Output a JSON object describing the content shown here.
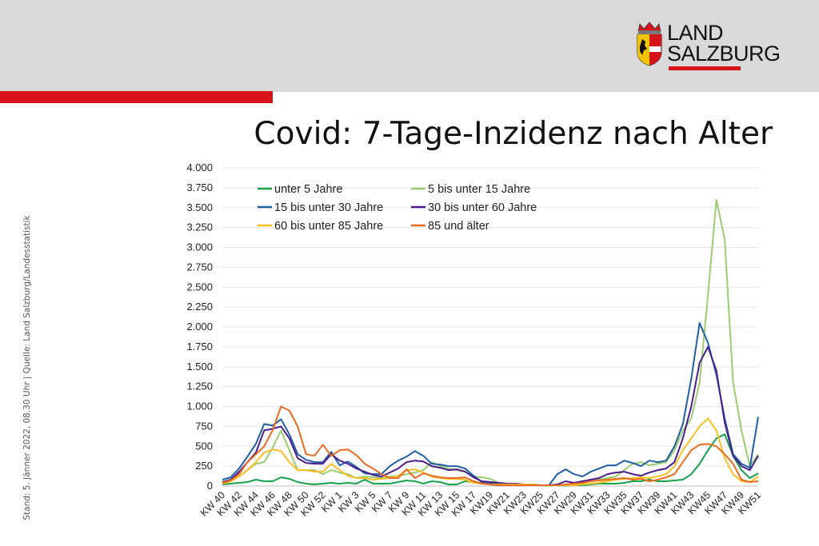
{
  "header": {
    "logo_line1": "LAND",
    "logo_line2": "SALZBURG",
    "brand_color": "#d7141a"
  },
  "slide": {
    "title": "Covid: 7-Tage-Inzidenz nach Alter",
    "sidenote": "Stand: 5. Jänner 2022, 08.30 Uhr | Quelle: Land Salzburg/Landesstatistik"
  },
  "chart_data": {
    "type": "line",
    "title": "",
    "xlabel": "",
    "ylabel": "",
    "ylim": [
      0,
      4000
    ],
    "yticks": [
      0,
      250,
      500,
      750,
      1000,
      1250,
      1500,
      1750,
      2000,
      2250,
      2500,
      2750,
      3000,
      3250,
      3500,
      3750,
      4000
    ],
    "ytick_labels": [
      "0",
      "250",
      "500",
      "750",
      "1.000",
      "1.250",
      "1.500",
      "1.750",
      "2.000",
      "2.250",
      "2.500",
      "2.750",
      "3.000",
      "3.250",
      "3.500",
      "3.750",
      "4.000"
    ],
    "grid": true,
    "legend": "top-left",
    "tick_labels": [
      "KW 40",
      "KW 42",
      "KW 44",
      "KW 46",
      "KW 48",
      "KW 50",
      "KW 52",
      "KW 1",
      "KW 3",
      "KW 5",
      "KW 7",
      "KW 9",
      "KW 11",
      "KW 13",
      "KW 15",
      "KW 17",
      "KW19",
      "KW21",
      "KW23",
      "KW25",
      "KW27",
      "KW29",
      "KW31",
      "KW33",
      "KW35",
      "KW37",
      "KW39",
      "KW41",
      "KW43",
      "KW45",
      "KW47",
      "KW49",
      "KW51"
    ],
    "n_points": 65,
    "series": [
      {
        "name": "unter 5 Jahre",
        "color": "#16a34a",
        "values": [
          20,
          30,
          40,
          50,
          80,
          60,
          60,
          110,
          90,
          50,
          30,
          20,
          30,
          40,
          30,
          40,
          30,
          80,
          30,
          30,
          30,
          50,
          70,
          60,
          30,
          60,
          50,
          20,
          20,
          60,
          50,
          40,
          20,
          10,
          10,
          10,
          10,
          10,
          10,
          5,
          5,
          5,
          10,
          10,
          20,
          30,
          30,
          30,
          40,
          60,
          60,
          80,
          60,
          60,
          70,
          80,
          150,
          280,
          450,
          600,
          650,
          380,
          200,
          100,
          160
        ]
      },
      {
        "name": "5 bis unter 15 Jahre",
        "color": "#9acd70",
        "values": [
          40,
          60,
          120,
          200,
          280,
          300,
          480,
          700,
          450,
          200,
          200,
          200,
          150,
          200,
          170,
          150,
          100,
          120,
          110,
          100,
          120,
          130,
          150,
          170,
          200,
          300,
          250,
          220,
          200,
          180,
          120,
          110,
          90,
          40,
          30,
          20,
          20,
          10,
          10,
          5,
          5,
          10,
          20,
          40,
          60,
          80,
          100,
          120,
          200,
          280,
          300,
          260,
          280,
          300,
          450,
          700,
          850,
          1300,
          2400,
          3600,
          3100,
          1300,
          700,
          250,
          400
        ]
      },
      {
        "name": "15 bis unter 30 Jahre",
        "color": "#1f5fa8",
        "values": [
          80,
          110,
          220,
          370,
          530,
          780,
          760,
          840,
          650,
          400,
          330,
          300,
          300,
          430,
          260,
          310,
          240,
          160,
          150,
          150,
          250,
          320,
          370,
          440,
          380,
          280,
          270,
          250,
          250,
          220,
          130,
          50,
          40,
          30,
          30,
          30,
          20,
          20,
          10,
          10,
          150,
          210,
          150,
          120,
          180,
          220,
          260,
          260,
          320,
          290,
          250,
          320,
          300,
          320,
          500,
          780,
          1350,
          2050,
          1800,
          1400,
          850,
          400,
          280,
          230,
          870
        ]
      },
      {
        "name": "30 bis unter 60 Jahre",
        "color": "#4b1c8c",
        "values": [
          50,
          80,
          180,
          300,
          420,
          700,
          720,
          750,
          600,
          350,
          290,
          280,
          280,
          400,
          320,
          280,
          220,
          180,
          140,
          120,
          170,
          220,
          300,
          320,
          310,
          250,
          230,
          200,
          210,
          180,
          110,
          60,
          50,
          40,
          30,
          30,
          20,
          20,
          10,
          10,
          20,
          60,
          40,
          60,
          80,
          100,
          150,
          170,
          180,
          150,
          130,
          170,
          200,
          220,
          300,
          600,
          1000,
          1550,
          1750,
          1450,
          800,
          380,
          250,
          200,
          380
        ]
      },
      {
        "name": "60 bis unter 85 Jahre",
        "color": "#fbbf24",
        "values": [
          30,
          60,
          120,
          200,
          300,
          420,
          460,
          440,
          300,
          200,
          200,
          180,
          180,
          280,
          200,
          130,
          100,
          100,
          80,
          90,
          100,
          130,
          200,
          210,
          170,
          120,
          100,
          90,
          90,
          80,
          40,
          30,
          20,
          20,
          20,
          20,
          20,
          20,
          10,
          10,
          10,
          10,
          10,
          20,
          30,
          40,
          60,
          80,
          90,
          100,
          110,
          100,
          120,
          150,
          250,
          450,
          600,
          750,
          850,
          700,
          350,
          150,
          60,
          50,
          120
        ]
      },
      {
        "name": "85 und älter",
        "color": "#ea6a1f",
        "values": [
          40,
          70,
          150,
          300,
          400,
          500,
          700,
          1000,
          950,
          750,
          400,
          380,
          520,
          380,
          450,
          460,
          390,
          280,
          220,
          150,
          100,
          100,
          210,
          100,
          160,
          130,
          110,
          100,
          100,
          110,
          60,
          30,
          20,
          10,
          10,
          10,
          10,
          10,
          10,
          10,
          10,
          20,
          30,
          40,
          60,
          70,
          80,
          90,
          100,
          80,
          90,
          60,
          80,
          110,
          150,
          300,
          450,
          520,
          530,
          500,
          400,
          280,
          80,
          50,
          60
        ]
      }
    ]
  }
}
